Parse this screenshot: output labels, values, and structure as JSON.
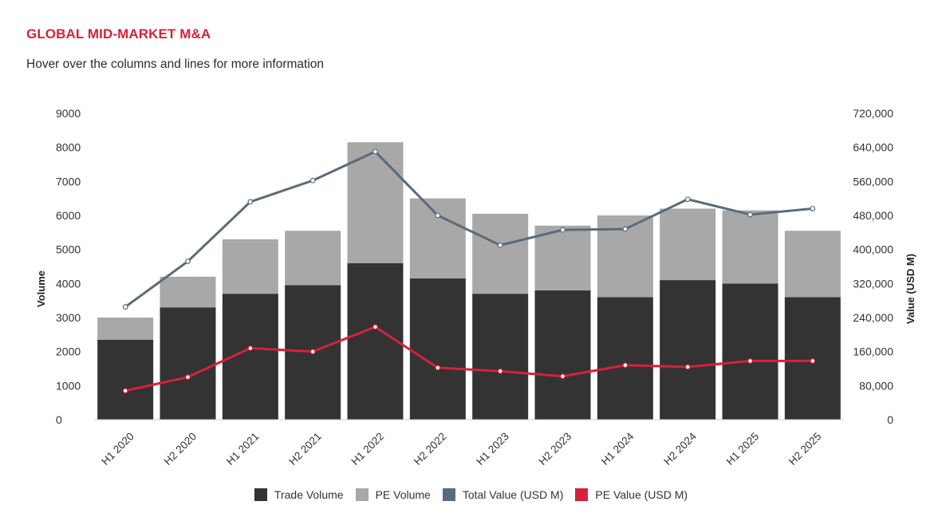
{
  "header": {
    "title": "GLOBAL MID-MARKET M&A",
    "subtitle": "Hover over the columns and lines for more information"
  },
  "colors": {
    "trade_volume": "#333333",
    "pe_volume": "#a8a8a8",
    "total_value": "#5a6b7b",
    "pe_value": "#d6213b"
  },
  "chart_data": {
    "type": "bar",
    "categories": [
      "H1 2020",
      "H2 2020",
      "H1 2021",
      "H2 2021",
      "H1 2022",
      "H2 2022",
      "H1 2023",
      "H2 2023",
      "H1 2024",
      "H2 2024",
      "H1 2025",
      "H2 2025"
    ],
    "ylabel": "Volume",
    "y2label": "Value (USD M)",
    "ylim": [
      0,
      9000
    ],
    "y2lim": [
      0,
      720000
    ],
    "yticks": [
      "0",
      "1000",
      "2000",
      "3000",
      "4000",
      "5000",
      "6000",
      "7000",
      "8000",
      "9000"
    ],
    "y2ticks": [
      "0",
      "80,000",
      "160,000",
      "240,000",
      "320,000",
      "400,000",
      "480,000",
      "560,000",
      "640,000",
      "720,000"
    ],
    "stacked": true,
    "series": [
      {
        "name": "Trade Volume",
        "kind": "bar",
        "axis": "left",
        "values": [
          2350,
          3300,
          3700,
          3950,
          4600,
          4150,
          3700,
          3800,
          3600,
          4100,
          4000,
          3600
        ]
      },
      {
        "name": "PE Volume",
        "kind": "bar",
        "axis": "left",
        "values": [
          650,
          900,
          1600,
          1600,
          3550,
          2350,
          2350,
          1900,
          2400,
          2100,
          2150,
          1950
        ]
      },
      {
        "name": "Total Value (USD M)",
        "kind": "line",
        "axis": "right",
        "values": [
          265000,
          372000,
          512000,
          562000,
          630000,
          480000,
          410000,
          446000,
          448000,
          518000,
          482000,
          496000
        ]
      },
      {
        "name": "PE Value (USD M)",
        "kind": "line",
        "axis": "right",
        "values": [
          68000,
          100000,
          168000,
          160000,
          218000,
          122000,
          114000,
          102000,
          128000,
          124000,
          138000,
          138000
        ]
      }
    ],
    "legend_position": "bottom-center",
    "grid": false
  },
  "legend": [
    {
      "label": "Trade Volume",
      "color": "#333333"
    },
    {
      "label": "PE Volume",
      "color": "#a8a8a8"
    },
    {
      "label": "Total Value (USD M)",
      "color": "#5a6b7b"
    },
    {
      "label": "PE Value (USD M)",
      "color": "#d6213b"
    }
  ]
}
